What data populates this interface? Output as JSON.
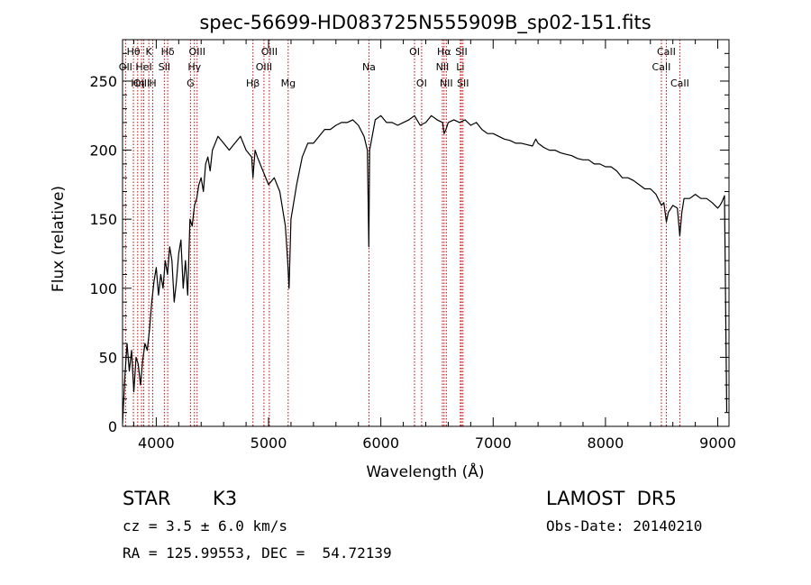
{
  "chart_data": {
    "type": "line",
    "title": "spec-56699-HD083725N555909B_sp02-151.fits",
    "xlabel": "Wavelength (Å)",
    "ylabel": "Flux (relative)",
    "xlim": [
      3700,
      9100
    ],
    "ylim": [
      0,
      280
    ],
    "x_ticks": [
      4000,
      5000,
      6000,
      7000,
      8000,
      9000
    ],
    "y_ticks": [
      0,
      50,
      100,
      150,
      200,
      250
    ],
    "grid": false,
    "colors": {
      "spectrum": "#000000",
      "line_markers": "#cc0000"
    },
    "series": [
      {
        "x": [
          3700,
          3720,
          3740,
          3760,
          3780,
          3800,
          3820,
          3840,
          3860,
          3880,
          3900,
          3920,
          3940,
          3960,
          3980,
          4000,
          4020,
          4040,
          4060,
          4080,
          4100,
          4120,
          4140,
          4160,
          4180,
          4200,
          4220,
          4240,
          4260,
          4280,
          4300,
          4320,
          4340,
          4360,
          4380,
          4400,
          4420,
          4440,
          4460,
          4480,
          4500,
          4550,
          4600,
          4650,
          4700,
          4750,
          4800,
          4850,
          4861,
          4880,
          4900,
          4950,
          5000,
          5050,
          5100,
          5150,
          5170,
          5183,
          5200,
          5250,
          5300,
          5350,
          5400,
          5450,
          5500,
          5550,
          5600,
          5650,
          5700,
          5750,
          5800,
          5850,
          5880,
          5893,
          5900,
          5950,
          6000,
          6050,
          6100,
          6150,
          6200,
          6250,
          6300,
          6350,
          6400,
          6450,
          6500,
          6550,
          6563,
          6580,
          6600,
          6650,
          6700,
          6750,
          6800,
          6850,
          6900,
          6950,
          7000,
          7050,
          7100,
          7150,
          7200,
          7250,
          7300,
          7350,
          7380,
          7400,
          7450,
          7500,
          7550,
          7600,
          7650,
          7700,
          7750,
          7800,
          7850,
          7900,
          7950,
          8000,
          8050,
          8100,
          8150,
          8200,
          8250,
          8300,
          8350,
          8400,
          8450,
          8498,
          8520,
          8542,
          8560,
          8600,
          8640,
          8662,
          8680,
          8700,
          8750,
          8800,
          8850,
          8900,
          8950,
          9000,
          9020,
          9040,
          9060,
          9080
        ],
        "y": [
          2,
          35,
          60,
          40,
          55,
          25,
          50,
          45,
          30,
          48,
          60,
          55,
          70,
          90,
          105,
          115,
          95,
          110,
          100,
          120,
          110,
          130,
          120,
          90,
          105,
          125,
          135,
          100,
          120,
          95,
          150,
          145,
          160,
          165,
          175,
          180,
          170,
          190,
          195,
          185,
          200,
          210,
          205,
          200,
          205,
          210,
          200,
          195,
          180,
          200,
          195,
          185,
          175,
          180,
          170,
          145,
          120,
          100,
          150,
          175,
          195,
          205,
          205,
          210,
          215,
          215,
          218,
          220,
          220,
          222,
          218,
          210,
          200,
          130,
          200,
          222,
          225,
          220,
          220,
          218,
          220,
          222,
          225,
          218,
          220,
          225,
          222,
          220,
          212,
          215,
          220,
          222,
          220,
          222,
          218,
          220,
          215,
          212,
          212,
          210,
          208,
          207,
          205,
          205,
          204,
          203,
          208,
          205,
          202,
          200,
          200,
          198,
          197,
          196,
          194,
          193,
          193,
          190,
          190,
          188,
          188,
          185,
          180,
          180,
          178,
          175,
          172,
          172,
          168,
          160,
          162,
          148,
          155,
          160,
          158,
          138,
          155,
          165,
          165,
          168,
          165,
          165,
          162,
          158,
          160,
          163,
          167,
          10
        ]
      }
    ],
    "line_markers": [
      {
        "label": "Hθ",
        "wavelength": 3797,
        "row": 1
      },
      {
        "label": "OII",
        "wavelength": 3727,
        "row": 2
      },
      {
        "label": "OIII",
        "wavelength": 3869,
        "row": 3
      },
      {
        "label": "K",
        "wavelength": 3934,
        "row": 1
      },
      {
        "label": "HeI",
        "wavelength": 3889,
        "row": 2
      },
      {
        "label": "Hη",
        "wavelength": 3835,
        "row": 3
      },
      {
        "label": "Hδ",
        "wavelength": 4102,
        "row": 1
      },
      {
        "label": "SII",
        "wavelength": 4072,
        "row": 2
      },
      {
        "label": "H",
        "wavelength": 3969,
        "row": 3
      },
      {
        "label": "OIII",
        "wavelength": 4364,
        "row": 1
      },
      {
        "label": "Hγ",
        "wavelength": 4340,
        "row": 2
      },
      {
        "label": "G",
        "wavelength": 4305,
        "row": 3
      },
      {
        "label": "OIII",
        "wavelength": 5007,
        "row": 1
      },
      {
        "label": "OIII",
        "wavelength": 4959,
        "row": 2
      },
      {
        "label": "Hβ",
        "wavelength": 4861,
        "row": 3
      },
      {
        "label": "Mg",
        "wavelength": 5175,
        "row": 3
      },
      {
        "label": "Na",
        "wavelength": 5894,
        "row": 2
      },
      {
        "label": "OI",
        "wavelength": 6300,
        "row": 1
      },
      {
        "label": "OI",
        "wavelength": 6363,
        "row": 3
      },
      {
        "label": "Hα",
        "wavelength": 6563,
        "row": 1
      },
      {
        "label": "NII",
        "wavelength": 6548,
        "row": 2
      },
      {
        "label": "NII",
        "wavelength": 6583,
        "row": 3
      },
      {
        "label": "SII",
        "wavelength": 6717,
        "row": 1
      },
      {
        "label": "Li",
        "wavelength": 6708,
        "row": 2
      },
      {
        "label": "SII",
        "wavelength": 6731,
        "row": 3
      },
      {
        "label": "CaII",
        "wavelength": 8542,
        "row": 1
      },
      {
        "label": "CaII",
        "wavelength": 8498,
        "row": 2
      },
      {
        "label": "CaII",
        "wavelength": 8662,
        "row": 3
      }
    ]
  },
  "info": {
    "object_class": "STAR",
    "subclass": "K3",
    "survey": "LAMOST  DR5",
    "redshift": "cz = 3.5 ± 6.0 km/s",
    "obs_date": "Obs-Date: 20140210",
    "coords": "RA = 125.99553, DEC =  54.72139"
  }
}
